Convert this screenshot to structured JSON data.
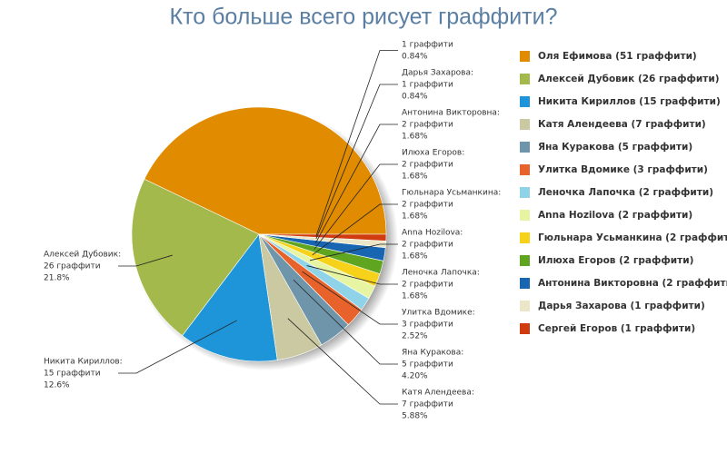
{
  "chart_data": {
    "type": "pie",
    "title": "Кто больше всего рисует граффити?",
    "categories": [
      "Оля Ефимова (51 граффити)",
      "Алексей Дубовик (26 граффити)",
      "Никита Кириллов (15 граффити)",
      "Катя Алендеева (7 граффити)",
      "Яна Куракова (5 граффити)",
      "Улитка Вдомике (3 граффити)",
      "Леночка Лапочка (2 граффити)",
      "Anna Hozilova (2 граффити)",
      "Гюльнара Усьманкина (2 граффити)",
      "Илюха Егоров (2 граффити)",
      "Антонина Викторовна (2 граффити)",
      "Дарья Захарова (1 граффити)",
      "Сергей Егоров (1 граффити)"
    ],
    "values": [
      51,
      26,
      15,
      7,
      5,
      3,
      2,
      2,
      2,
      2,
      2,
      1,
      1
    ],
    "colors": [
      "#e08b00",
      "#a3b94c",
      "#1e95d9",
      "#cbc9a2",
      "#6f95aa",
      "#e8632c",
      "#8fd3e8",
      "#e7f5a2",
      "#f6d21a",
      "#5fa51f",
      "#1866b1",
      "#ebe6c8",
      "#d03b10"
    ],
    "callout_names": [
      null,
      "Алексей Дубовик:",
      "Никита Кириллов:",
      "Катя Алендеева:",
      "Яна Куракова:",
      "Улитка Вдомике:",
      "Леночка Лапочка:",
      "Anna Hozilova:",
      "Гюльнара Усьманкина:",
      "Илюха Егоров:",
      "Антонина Викторовна:",
      "Дарья Захарова:",
      null
    ],
    "value_labels": [
      null,
      "26 граффити",
      "15 граффити",
      "7 граффити",
      "5 граффити",
      "3 граффити",
      "2 граффити",
      "2 граффити",
      "2 граффити",
      "2 граффити",
      "2 граффити",
      "1 граффити",
      "1 граффити"
    ],
    "percent_labels": [
      null,
      "21.8%",
      "12.6%",
      "5.88%",
      "4.20%",
      "2.52%",
      "1.68%",
      "1.68%",
      "1.68%",
      "1.68%",
      "1.68%",
      "0.84%",
      "0.84%"
    ]
  }
}
